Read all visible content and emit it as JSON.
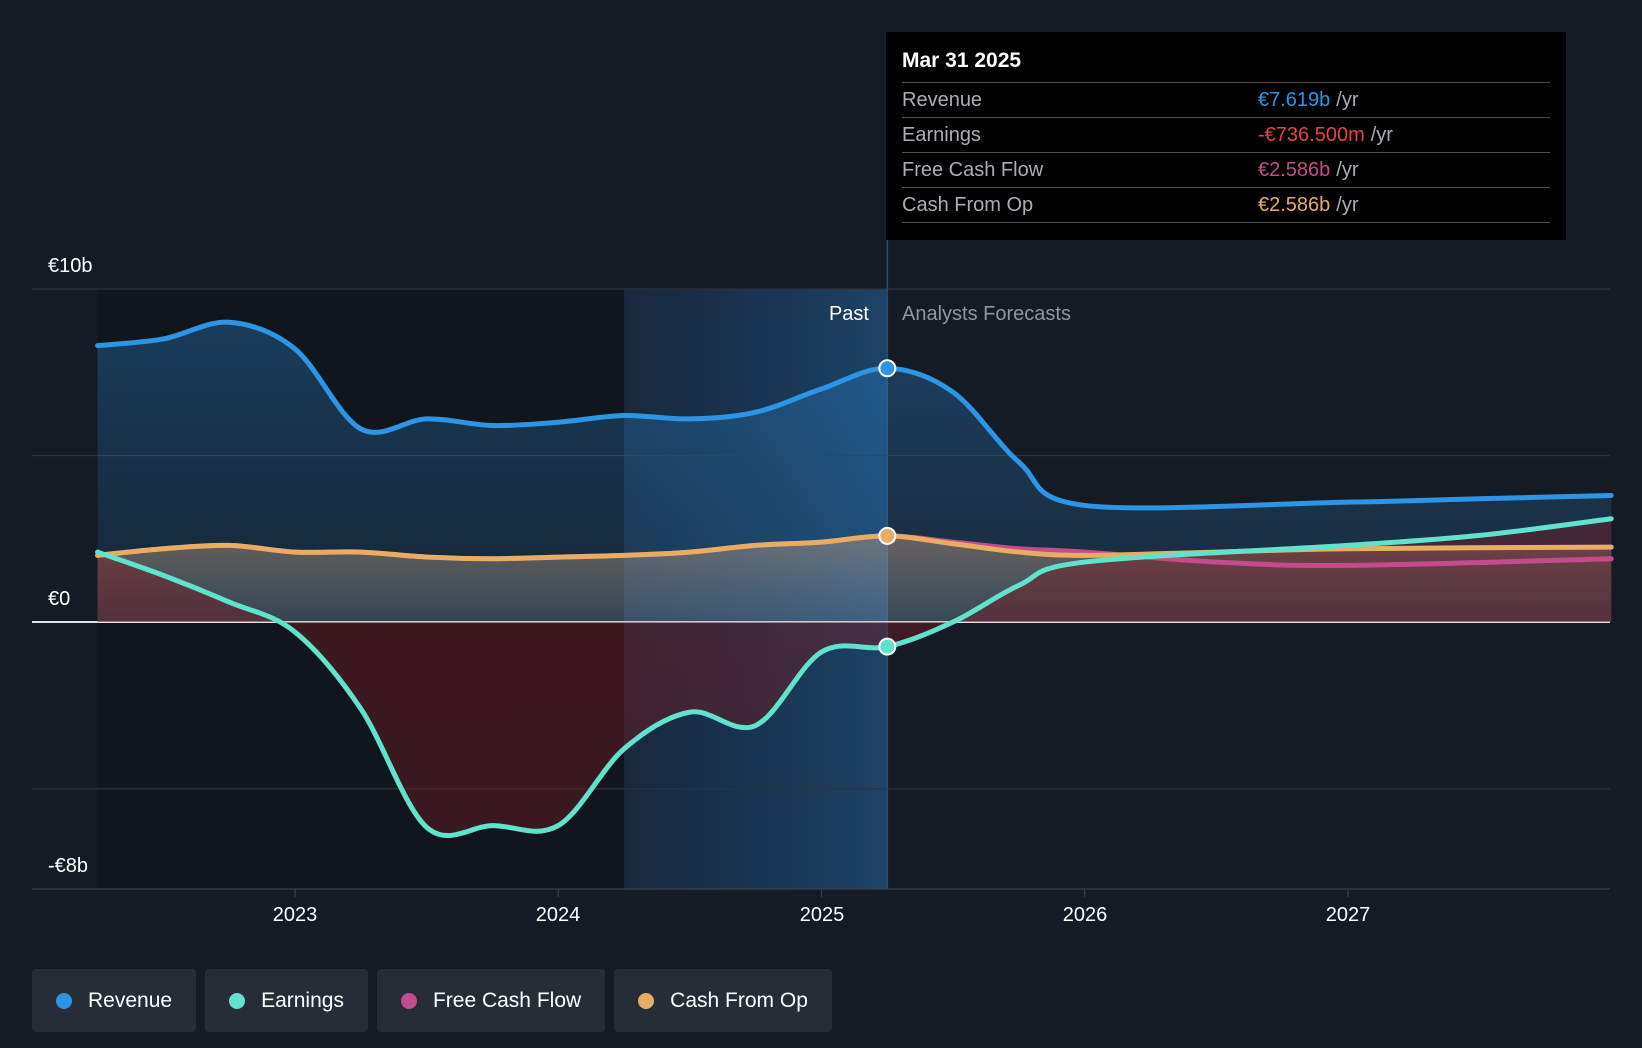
{
  "chart_data": {
    "type": "line",
    "x_unit": "date",
    "y_unit": "EUR billions",
    "y_tick_labels": [
      "€10b",
      "€0",
      "-€8b"
    ],
    "x_tick_labels": [
      "2023",
      "2024",
      "2025",
      "2026",
      "2027"
    ],
    "x_ticks": [
      2023,
      2024,
      2025,
      2026,
      2027
    ],
    "xlim": [
      2022.0,
      2028.0
    ],
    "ylim": [
      -8,
      10
    ],
    "past_label": "Past",
    "forecast_label": "Analysts Forecasts",
    "divider_x": 2025.25,
    "highlight_start": 2024.25,
    "series": [
      {
        "name": "Revenue",
        "color": "#2d95e6",
        "points": [
          [
            2022.25,
            8.3
          ],
          [
            2022.5,
            8.5
          ],
          [
            2022.75,
            9.0
          ],
          [
            2023.0,
            8.2
          ],
          [
            2023.25,
            5.8
          ],
          [
            2023.5,
            6.1
          ],
          [
            2023.75,
            5.9
          ],
          [
            2024.0,
            6.0
          ],
          [
            2024.25,
            6.2
          ],
          [
            2024.5,
            6.1
          ],
          [
            2024.75,
            6.3
          ],
          [
            2025.0,
            7.0
          ],
          [
            2025.25,
            7.619
          ],
          [
            2025.5,
            6.9
          ],
          [
            2025.75,
            4.8
          ],
          [
            2026.0,
            3.5
          ],
          [
            2027.0,
            3.6
          ],
          [
            2027.5,
            3.7
          ],
          [
            2028.0,
            3.8
          ]
        ]
      },
      {
        "name": "Earnings",
        "color": "#5fe3cc",
        "points": [
          [
            2022.25,
            2.1
          ],
          [
            2022.5,
            1.4
          ],
          [
            2022.75,
            0.6
          ],
          [
            2023.0,
            -0.3
          ],
          [
            2023.25,
            -2.6
          ],
          [
            2023.5,
            -6.15
          ],
          [
            2023.75,
            -6.1
          ],
          [
            2024.0,
            -6.1
          ],
          [
            2024.25,
            -3.8
          ],
          [
            2024.5,
            -2.7
          ],
          [
            2024.75,
            -3.1
          ],
          [
            2025.0,
            -0.9
          ],
          [
            2025.25,
            -0.7365
          ],
          [
            2025.5,
            0.0
          ],
          [
            2025.75,
            1.1
          ],
          [
            2026.0,
            1.8
          ],
          [
            2027.0,
            2.3
          ],
          [
            2027.5,
            2.6
          ],
          [
            2028.0,
            3.1
          ]
        ]
      },
      {
        "name": "Free Cash Flow",
        "color": "#c44c8c",
        "points": [
          [
            2022.25,
            2.0
          ],
          [
            2022.5,
            2.2
          ],
          [
            2022.75,
            2.3
          ],
          [
            2023.0,
            2.1
          ],
          [
            2023.25,
            2.1
          ],
          [
            2023.5,
            1.95
          ],
          [
            2023.75,
            1.9
          ],
          [
            2024.0,
            1.95
          ],
          [
            2024.25,
            2.0
          ],
          [
            2024.5,
            2.1
          ],
          [
            2024.75,
            2.3
          ],
          [
            2025.0,
            2.4
          ],
          [
            2025.25,
            2.586
          ],
          [
            2025.5,
            2.4
          ],
          [
            2025.75,
            2.2
          ],
          [
            2026.0,
            2.1
          ],
          [
            2026.5,
            1.8
          ],
          [
            2027.0,
            1.7
          ],
          [
            2028.0,
            1.9
          ]
        ]
      },
      {
        "name": "Cash From Op",
        "color": "#e8ad63",
        "points": [
          [
            2022.25,
            2.0
          ],
          [
            2022.5,
            2.2
          ],
          [
            2022.75,
            2.3
          ],
          [
            2023.0,
            2.1
          ],
          [
            2023.25,
            2.1
          ],
          [
            2023.5,
            1.95
          ],
          [
            2023.75,
            1.9
          ],
          [
            2024.0,
            1.95
          ],
          [
            2024.25,
            2.0
          ],
          [
            2024.5,
            2.1
          ],
          [
            2024.75,
            2.3
          ],
          [
            2025.0,
            2.4
          ],
          [
            2025.25,
            2.586
          ],
          [
            2025.5,
            2.35
          ],
          [
            2025.75,
            2.1
          ],
          [
            2026.0,
            2.0
          ],
          [
            2026.5,
            2.1
          ],
          [
            2027.0,
            2.2
          ],
          [
            2028.0,
            2.25
          ]
        ]
      }
    ],
    "markers": [
      {
        "series": "Revenue",
        "x": 2025.25,
        "y": 7.619
      },
      {
        "series": "Cash From Op",
        "x": 2025.25,
        "y": 2.586
      },
      {
        "series": "Earnings",
        "x": 2025.25,
        "y": -0.7365
      }
    ]
  },
  "tooltip": {
    "date": "Mar 31 2025",
    "rows": [
      {
        "name": "Revenue",
        "value": "€7.619b",
        "unit": "/yr",
        "color": "#2d95e6"
      },
      {
        "name": "Earnings",
        "value": "-€736.500m",
        "unit": "/yr",
        "color": "#e8414e"
      },
      {
        "name": "Free Cash Flow",
        "value": "€2.586b",
        "unit": "/yr",
        "color": "#c44c8c"
      },
      {
        "name": "Cash From Op",
        "value": "€2.586b",
        "unit": "/yr",
        "color": "#e8ad63"
      }
    ]
  },
  "legend": [
    {
      "label": "Revenue",
      "color": "#2d95e6"
    },
    {
      "label": "Earnings",
      "color": "#5fe3cc"
    },
    {
      "label": "Free Cash Flow",
      "color": "#c44c8c"
    },
    {
      "label": "Cash From Op",
      "color": "#e8ad63"
    }
  ]
}
